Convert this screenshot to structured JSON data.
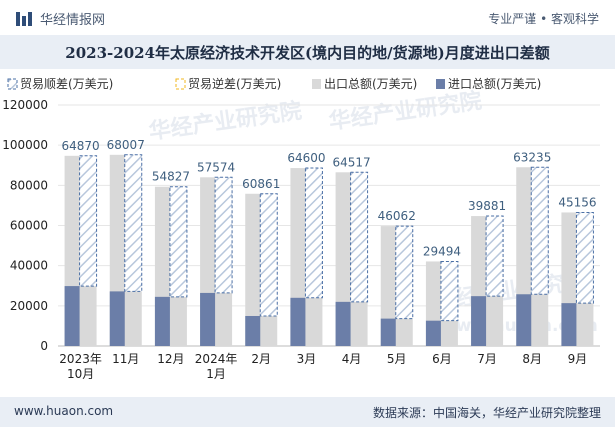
{
  "header": {
    "brand": "华经情报网",
    "slogan": "专业严谨 • 客观科学"
  },
  "footer": {
    "site": "www.huaon.com",
    "source": "数据来源：中国海关，华经产业研究院整理"
  },
  "watermarks": [
    "华经产业研究院",
    "华经产业研究院",
    "华经产业研究院",
    "www.huaon.com"
  ],
  "colors": {
    "export_bar": "#d9d9d9",
    "import_bar": "#6b7ea8",
    "trade_surplus": "#4a6fa5",
    "trade_deficit": "#f2b71f",
    "label": "#3f5f7f",
    "axis": "#222222",
    "grid": "#e6e6e6"
  },
  "chart_data": {
    "type": "bar",
    "title": "2023-2024年太原经济技术开发区(境内目的地/货源地)月度进出口差额",
    "legend_position": "top-left",
    "legend": [
      "贸易顺差(万美元)",
      "贸易逆差(万美元)",
      "出口总额(万美元)",
      "进口总额(万美元)"
    ],
    "categories": [
      [
        "2023年",
        "10月"
      ],
      [
        "11月"
      ],
      [
        "12月"
      ],
      [
        "2024年",
        "1月"
      ],
      [
        "2月"
      ],
      [
        "3月"
      ],
      [
        "4月"
      ],
      [
        "5月"
      ],
      [
        "6月"
      ],
      [
        "7月"
      ],
      [
        "8月"
      ],
      [
        "9月"
      ]
    ],
    "ylim": [
      0,
      120000
    ],
    "yticks": [
      0,
      20000,
      40000,
      60000,
      80000,
      100000,
      120000
    ],
    "grid": true,
    "series": [
      {
        "name": "出口总额(万美元)",
        "values": [
          94700,
          95200,
          79300,
          84000,
          75800,
          88600,
          86500,
          59700,
          42100,
          64700,
          89000,
          66500
        ]
      },
      {
        "name": "进口总额(万美元)",
        "values": [
          29830,
          27193,
          24473,
          26426,
          14939,
          24000,
          21983,
          13638,
          12606,
          24819,
          25765,
          21344
        ]
      },
      {
        "name": "贸易顺差(万美元)",
        "values": [
          64870,
          68007,
          54827,
          57574,
          60861,
          64600,
          64517,
          46062,
          29494,
          39881,
          63235,
          45156
        ]
      }
    ]
  }
}
